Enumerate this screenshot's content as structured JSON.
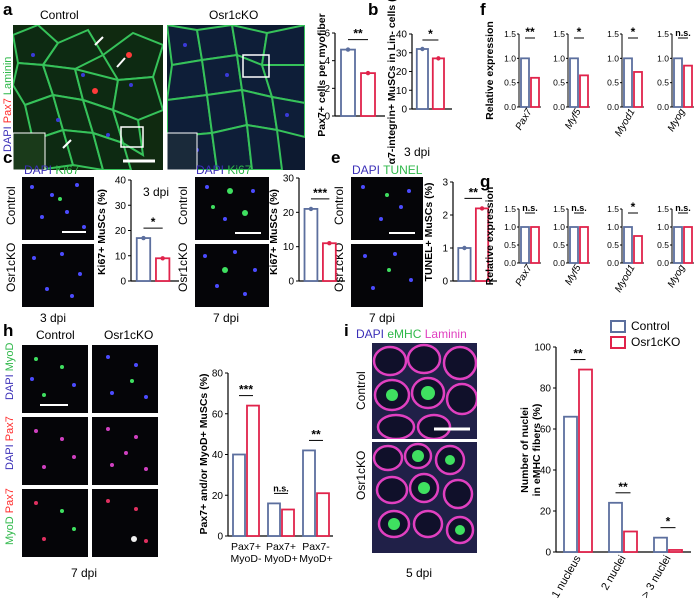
{
  "colors": {
    "control": "#5c6f9e",
    "osr1cko": "#e0234b",
    "dapi": "#3b2fb8",
    "green": "#2fd04a",
    "red": "#ff2b2b",
    "magenta": "#e040c0"
  },
  "panel_a": {
    "label": "a",
    "control": "Control",
    "osr1": "Osr1cKO",
    "stain": [
      "DAPI",
      "Pax7",
      "Laminin"
    ],
    "dpi": "3 dpi"
  },
  "panel_b": {
    "label": "b",
    "dpi": "3 dpi"
  },
  "panel_c": {
    "label": "c",
    "stain": [
      "DAPI",
      "Ki67"
    ],
    "dpi": "3 dpi",
    "row1": "Control",
    "row2": "Osr1cKO"
  },
  "panel_d": {
    "label": "d",
    "stain": [
      "DAPI",
      "Ki67"
    ],
    "dpi": "7 dpi",
    "row1": "Control",
    "row2": "Osr1cKO"
  },
  "panel_e": {
    "label": "e",
    "stain": [
      "DAPI",
      "TUNEL"
    ],
    "dpi": "7 dpi",
    "row1": "Control",
    "row2": "Osr1cKO"
  },
  "panel_f": {
    "label": "f"
  },
  "panel_g": {
    "label": "g"
  },
  "panel_h": {
    "label": "h",
    "control": "Control",
    "osr1": "Osr1cKO",
    "dpi": "7 dpi",
    "row1": [
      "DAPI",
      "MyoD"
    ],
    "row2": [
      "DAPI",
      "Pax7"
    ],
    "row3": [
      "MyoD",
      "Pax7"
    ]
  },
  "panel_i": {
    "label": "i",
    "stain": [
      "DAPI",
      "eMHC",
      "Laminin"
    ],
    "dpi": "5 dpi",
    "row1": "Control",
    "row2": "Osr1cKO",
    "legend": [
      "Control",
      "Osr1cKO"
    ]
  },
  "chart_data": [
    {
      "id": "a",
      "type": "bar",
      "ylabel": "Pax7+ cells per myofiber",
      "ylim": [
        0,
        6
      ],
      "yticks": [
        0,
        2,
        4,
        6
      ],
      "categories": [
        "Control",
        "Osr1cKO"
      ],
      "values": [
        4.8,
        3.1
      ],
      "sig": "**"
    },
    {
      "id": "b",
      "type": "bar",
      "ylabel": "α7-integrin+ MuSCs in Lin- cells (%)",
      "ylim": [
        0,
        40
      ],
      "yticks": [
        0,
        10,
        20,
        30,
        40
      ],
      "categories": [
        "Control",
        "Osr1cKO"
      ],
      "values": [
        32,
        27
      ],
      "sig": "*"
    },
    {
      "id": "c",
      "type": "bar",
      "ylabel": "Ki67+ MuSCs (%)",
      "ylim": [
        0,
        40
      ],
      "yticks": [
        0,
        10,
        20,
        30,
        40
      ],
      "categories": [
        "Control",
        "Osr1cKO"
      ],
      "values": [
        17,
        9
      ],
      "sig": "*"
    },
    {
      "id": "d",
      "type": "bar",
      "ylabel": "Ki67+ MuSCs (%)",
      "ylim": [
        0,
        30
      ],
      "yticks": [
        0,
        10,
        20,
        30
      ],
      "categories": [
        "Control",
        "Osr1cKO"
      ],
      "values": [
        21,
        11
      ],
      "sig": "***"
    },
    {
      "id": "e",
      "type": "bar",
      "ylabel": "TUNEL+ MuSCs (%)",
      "ylim": [
        0,
        3
      ],
      "yticks": [
        0,
        1,
        2,
        3
      ],
      "categories": [
        "Control",
        "Osr1cKO"
      ],
      "values": [
        1.0,
        2.2
      ],
      "sig": "**"
    },
    {
      "id": "f",
      "type": "bar",
      "ylabel": "Relative expression",
      "ylim": [
        0,
        1.5
      ],
      "yticks": [
        0.0,
        0.5,
        1.0,
        1.5
      ],
      "genes": [
        "Pax7",
        "Myf5",
        "Myod1",
        "Myog"
      ],
      "series": [
        {
          "name": "Control",
          "values": [
            1.0,
            1.0,
            1.0,
            1.0
          ]
        },
        {
          "name": "Osr1cKO",
          "values": [
            0.6,
            0.65,
            0.72,
            0.85
          ]
        }
      ],
      "sig": [
        "**",
        "*",
        "*",
        "n.s."
      ]
    },
    {
      "id": "g",
      "type": "bar",
      "ylabel": "Relative expression",
      "ylim": [
        0,
        1.5
      ],
      "yticks": [
        0.0,
        0.5,
        1.0,
        1.5
      ],
      "genes": [
        "Pax7",
        "Myf5",
        "Myod1",
        "Myog"
      ],
      "series": [
        {
          "name": "Control",
          "values": [
            1.0,
            1.0,
            1.0,
            1.0
          ]
        },
        {
          "name": "Osr1cKO",
          "values": [
            1.0,
            1.0,
            0.75,
            1.0
          ]
        }
      ],
      "sig": [
        "n.s.",
        "n.s.",
        "*",
        "n.s."
      ]
    },
    {
      "id": "h",
      "type": "bar",
      "ylabel": "Pax7+ and/or MyoD+ MuSCs (%)",
      "ylim": [
        0,
        80
      ],
      "yticks": [
        0,
        20,
        40,
        60,
        80
      ],
      "categories": [
        [
          "Pax7+",
          "MyoD-"
        ],
        [
          "Pax7+",
          "MyoD+"
        ],
        [
          "Pax7-",
          "MyoD+"
        ]
      ],
      "series": [
        {
          "name": "Control",
          "values": [
            40,
            16,
            42
          ]
        },
        {
          "name": "Osr1cKO",
          "values": [
            64,
            13,
            21
          ]
        }
      ],
      "sig": [
        "***",
        "n.s.",
        "**"
      ]
    },
    {
      "id": "i",
      "type": "bar",
      "ylabel": [
        "Number of nuclei",
        "in eMHC fibers (%)"
      ],
      "ylim": [
        0,
        100
      ],
      "yticks": [
        0,
        20,
        40,
        60,
        80,
        100
      ],
      "categories": [
        "1 nucleus",
        "2 nuclei",
        "> 3 nuclei"
      ],
      "series": [
        {
          "name": "Control",
          "values": [
            66,
            24,
            7
          ]
        },
        {
          "name": "Osr1cKO",
          "values": [
            89,
            10,
            1
          ]
        }
      ],
      "sig": [
        "**",
        "**",
        "*"
      ]
    }
  ]
}
